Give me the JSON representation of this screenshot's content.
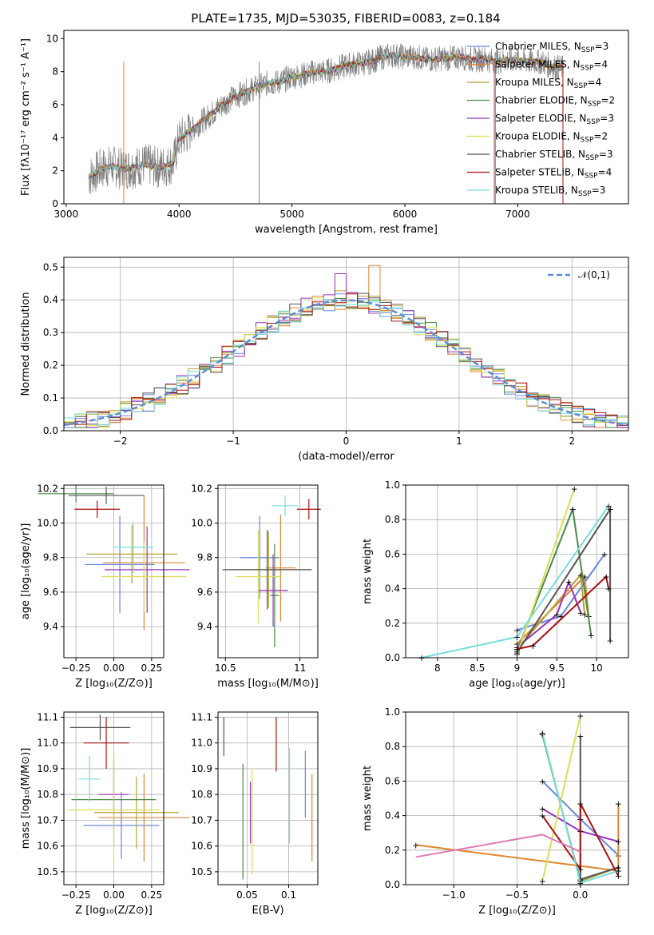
{
  "page_title": "PLATE=1735, MJD=53035, FIBERID=0083, z=0.184",
  "models": [
    {
      "label": "Chabrier MILES, N_SSP=3",
      "color": "#6688dd"
    },
    {
      "label": "Salpeter MILES, N_SSP=4",
      "color": "#e08530"
    },
    {
      "label": "Kroupa MILES, N_SSP=4",
      "color": "#b8a032"
    },
    {
      "label": "Chabrier ELODIE, N_SSP=2",
      "color": "#4a8a4a"
    },
    {
      "label": "Salpeter ELODIE, N_SSP=3",
      "color": "#9933bb"
    },
    {
      "label": "Kroupa ELODIE, N_SSP=2",
      "color": "#dddd55"
    },
    {
      "label": "Chabrier STELIB, N_SSP=3",
      "color": "#555555"
    },
    {
      "label": "Salpeter STELIB, N_SSP=4",
      "color": "#aa1111"
    },
    {
      "label": "Kroupa STELIB, N_SSP=3",
      "color": "#77dddd"
    }
  ],
  "chart_data": [
    {
      "id": "spectrum",
      "type": "line",
      "xlabel": "wavelength [Angstrom, rest frame]",
      "ylabel": "Flux [fλ10⁻¹⁷ erg cm⁻² s⁻¹ A⁻¹]",
      "xlim": [
        2980,
        7980
      ],
      "ylim": [
        0,
        10.5
      ],
      "xticks": [
        3000,
        4000,
        5000,
        6000,
        7000
      ],
      "yticks": [
        0,
        2,
        4,
        6,
        8,
        10
      ],
      "continuum": [
        [
          3200,
          1.6
        ],
        [
          3300,
          2.1
        ],
        [
          3400,
          2.3
        ],
        [
          3500,
          2.1
        ],
        [
          3600,
          2.2
        ],
        [
          3700,
          2.4
        ],
        [
          3800,
          2.2
        ],
        [
          3900,
          2.3
        ],
        [
          3950,
          2.5
        ],
        [
          4000,
          3.9
        ],
        [
          4100,
          4.4
        ],
        [
          4200,
          5.0
        ],
        [
          4300,
          5.5
        ],
        [
          4400,
          6.1
        ],
        [
          4500,
          6.5
        ],
        [
          4600,
          6.8
        ],
        [
          4700,
          7.1
        ],
        [
          4800,
          7.3
        ],
        [
          4900,
          7.4
        ],
        [
          5000,
          7.7
        ],
        [
          5100,
          7.8
        ],
        [
          5200,
          8.0
        ],
        [
          5300,
          8.0
        ],
        [
          5400,
          8.2
        ],
        [
          5500,
          8.4
        ],
        [
          5600,
          8.5
        ],
        [
          5700,
          8.6
        ],
        [
          5800,
          8.9
        ],
        [
          5900,
          9.0
        ],
        [
          6000,
          8.9
        ],
        [
          6100,
          8.9
        ],
        [
          6200,
          8.7
        ],
        [
          6300,
          8.8
        ],
        [
          6400,
          8.8
        ],
        [
          6500,
          8.9
        ],
        [
          6600,
          8.7
        ],
        [
          6700,
          8.8
        ],
        [
          6800,
          8.6
        ],
        [
          6900,
          8.7
        ],
        [
          7000,
          8.7
        ],
        [
          7100,
          8.6
        ],
        [
          7200,
          8.6
        ],
        [
          7300,
          8.3
        ],
        [
          7400,
          8.2
        ]
      ]
    },
    {
      "id": "residuals",
      "type": "histogram",
      "xlabel": "(data-model)/error",
      "ylabel": "Normed distribution",
      "xlim": [
        -2.5,
        2.5
      ],
      "ylim": [
        0,
        0.53
      ],
      "xticks": [
        -2,
        -1,
        0,
        1,
        2
      ],
      "yticks": [
        0,
        0.1,
        0.2,
        0.3,
        0.4,
        0.5
      ],
      "legend": "𝒩(0,1)",
      "legend_position": "top-right",
      "bin_width": 0.1
    },
    {
      "id": "age_vs_Z",
      "type": "scatter",
      "xlabel": "Z [log₁₀(Z/Z⊙)]",
      "ylabel": "age  [log₁₀(age/yr)]",
      "xlim": [
        -0.33,
        0.33
      ],
      "ylim": [
        9.22,
        10.22
      ],
      "xticks": [
        -0.25,
        0,
        0.25
      ],
      "xticklabels": [
        "−0.25",
        "0.00",
        "0.25"
      ],
      "yticks": [
        9.4,
        9.6,
        9.8,
        10.0,
        10.2
      ],
      "points": [
        [
          0.04,
          9.76,
          0.23,
          0.28
        ],
        [
          0.2,
          9.77,
          0.27,
          0.39
        ],
        [
          0.12,
          9.82,
          0.3,
          0.17
        ],
        [
          -0.25,
          10.17,
          0.25,
          0.05
        ],
        [
          0.22,
          9.73,
          0.28,
          0.25
        ],
        [
          0.2,
          9.69,
          0.28,
          0.2
        ],
        [
          -0.05,
          10.16,
          0.25,
          0.05
        ],
        [
          -0.11,
          10.08,
          0.15,
          0.05
        ],
        [
          0.13,
          9.86,
          0.13,
          0.15
        ]
      ]
    },
    {
      "id": "age_vs_mass",
      "type": "scatter",
      "xlabel": "mass [log₁₀(M/M⊙)]",
      "ylabel": "",
      "xlim": [
        10.45,
        11.12
      ],
      "ylim": [
        9.22,
        10.22
      ],
      "xticks": [
        10.5,
        11.0
      ],
      "yticks": [
        9.4,
        9.6,
        9.8,
        10.0,
        10.2
      ]
    },
    {
      "id": "weight_vs_age",
      "type": "line",
      "xlabel": "age  [log₁₀(age/yr)]",
      "ylabel": "mass weight",
      "xlim": [
        7.6,
        10.4
      ],
      "ylim": [
        0,
        1.0
      ],
      "xticks": [
        8.0,
        8.5,
        9.0,
        9.5,
        10.0
      ],
      "yticks": [
        0,
        0.2,
        0.4,
        0.6,
        0.8,
        1.0
      ]
    },
    {
      "id": "mass_vs_Z",
      "type": "scatter",
      "xlabel": "Z [log₁₀(Z/Z⊙)]",
      "ylabel": "mass [log₁₀(M/M⊙)]",
      "xlim": [
        -0.33,
        0.33
      ],
      "ylim": [
        10.45,
        11.12
      ],
      "xticks": [
        -0.25,
        0,
        0.25
      ],
      "xticklabels": [
        "−0.25",
        "0.00",
        "0.25"
      ],
      "yticks": [
        10.5,
        10.6,
        10.7,
        10.8,
        10.9,
        11.0,
        11.1
      ]
    },
    {
      "id": "mass_vs_ebv",
      "type": "scatter",
      "xlabel": "E(B-V)",
      "ylabel": "",
      "xlim": [
        0.015,
        0.135
      ],
      "ylim": [
        10.45,
        11.12
      ],
      "xticks": [
        0.05,
        0.1
      ],
      "yticks": [
        10.5,
        10.6,
        10.7,
        10.8,
        10.9,
        11.0,
        11.1
      ]
    },
    {
      "id": "weight_vs_Z",
      "type": "line",
      "xlabel": "Z [log₁₀(Z/Z⊙)]",
      "ylabel": "mass weight",
      "xlim": [
        -1.38,
        0.38
      ],
      "ylim": [
        0,
        1.0
      ],
      "xticks": [
        -1.0,
        -0.5,
        0.0
      ],
      "xticklabels": [
        "−1.0",
        "−0.5",
        "0.0"
      ],
      "yticks": [
        0,
        0.2,
        0.4,
        0.6,
        0.8,
        1.0
      ]
    }
  ]
}
